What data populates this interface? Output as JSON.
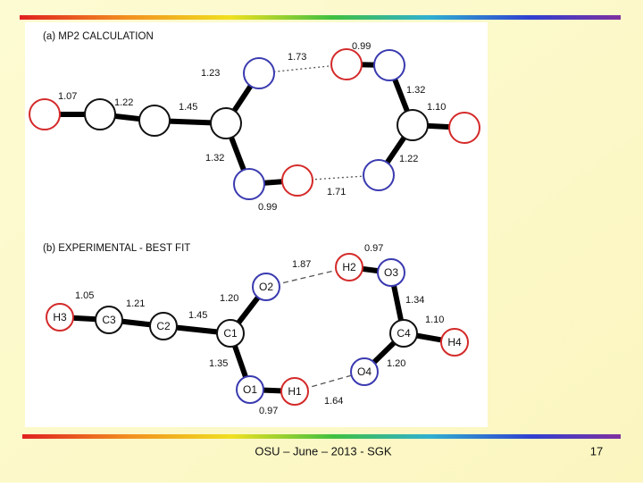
{
  "panel_a": {
    "title": "(a)  MP2 CALCULATION",
    "bond_labels": [
      "1.07",
      "1.22",
      "1.45",
      "1.23",
      "1.73",
      "0.99",
      "1.32",
      "1.10",
      "1.22",
      "1.71",
      "1.32",
      "0.99"
    ]
  },
  "panel_b": {
    "title": "(b) EXPERIMENTAL - BEST FIT",
    "atom_labels": [
      "H3",
      "C3",
      "C2",
      "C1",
      "O2",
      "H2",
      "O3",
      "C4",
      "H4",
      "O4",
      "H1",
      "O1"
    ],
    "bond_labels": [
      "1.05",
      "1.21",
      "1.45",
      "1.20",
      "1.87",
      "0.97",
      "1.34",
      "1.10",
      "1.20",
      "1.64",
      "1.35",
      "0.97"
    ]
  },
  "footer": {
    "text": "OSU – June – 2013 - SGK",
    "page": "17"
  }
}
